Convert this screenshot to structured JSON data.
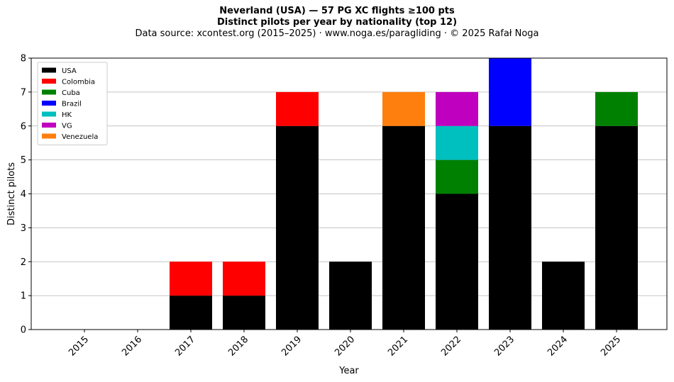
{
  "chart_data": {
    "type": "bar",
    "stacked": true,
    "title": "Neverland (USA)  —  57 PG XC flights ≥100 pts",
    "subtitle": "Distinct pilots per year by nationality (top 12)",
    "source": "Data source: xcontest.org (2015–2025)  ·  www.noga.es/paragliding  ·  © 2025 Rafał Noga",
    "xlabel": "Year",
    "ylabel": "Distinct pilots",
    "ylim": [
      0,
      8
    ],
    "yticks": [
      "0",
      "1",
      "2",
      "3",
      "4",
      "5",
      "6",
      "7",
      "8"
    ],
    "grid": "horizontal",
    "legend_position": "top-left",
    "categories": [
      "2015",
      "2016",
      "2017",
      "2018",
      "2019",
      "2020",
      "2021",
      "2022",
      "2023",
      "2024",
      "2025"
    ],
    "series": [
      {
        "name": "USA",
        "color": "#000000",
        "values": [
          0,
          0,
          1,
          1,
          6,
          2,
          6,
          4,
          6,
          2,
          6
        ]
      },
      {
        "name": "Colombia",
        "color": "#ff0000",
        "values": [
          0,
          0,
          1,
          1,
          1,
          0,
          0,
          0,
          0,
          0,
          0
        ]
      },
      {
        "name": "Cuba",
        "color": "#008000",
        "values": [
          0,
          0,
          0,
          0,
          0,
          0,
          0,
          1,
          0,
          0,
          1
        ]
      },
      {
        "name": "Brazil",
        "color": "#0000ff",
        "values": [
          0,
          0,
          0,
          0,
          0,
          0,
          0,
          0,
          2,
          0,
          0
        ]
      },
      {
        "name": "HK",
        "color": "#00bfbf",
        "values": [
          0,
          0,
          0,
          0,
          0,
          0,
          0,
          1,
          0,
          0,
          0
        ]
      },
      {
        "name": "VG",
        "color": "#bf00bf",
        "values": [
          0,
          0,
          0,
          0,
          0,
          0,
          0,
          1,
          0,
          0,
          0
        ]
      },
      {
        "name": "Venezuela",
        "color": "#ff7f0e",
        "values": [
          0,
          0,
          0,
          0,
          0,
          0,
          1,
          0,
          0,
          0,
          0
        ]
      }
    ]
  }
}
